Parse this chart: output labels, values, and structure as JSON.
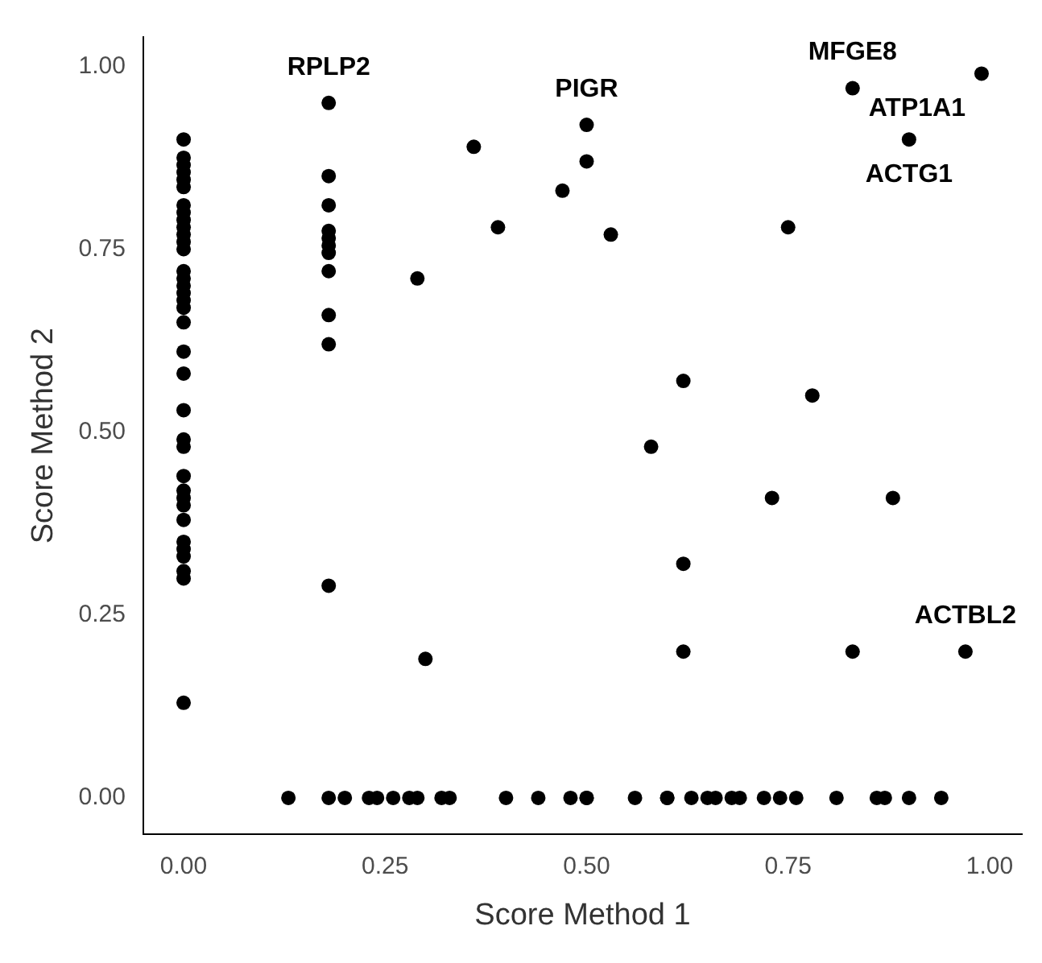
{
  "chart_data": {
    "type": "scatter",
    "xlabel": "Score Method 1",
    "ylabel": "Score Method 2",
    "xlim": [
      -0.05,
      1.04
    ],
    "ylim": [
      -0.05,
      1.04
    ],
    "xticks": [
      {
        "value": 0,
        "label": "0.00"
      },
      {
        "value": 0.25,
        "label": "0.25"
      },
      {
        "value": 0.5,
        "label": "0.50"
      },
      {
        "value": 0.75,
        "label": "0.75"
      },
      {
        "value": 1,
        "label": "1.00"
      }
    ],
    "yticks": [
      {
        "value": 0,
        "label": "0.00"
      },
      {
        "value": 0.25,
        "label": "0.25"
      },
      {
        "value": 0.5,
        "label": "0.50"
      },
      {
        "value": 0.75,
        "label": "0.75"
      },
      {
        "value": 1,
        "label": "1.00"
      }
    ],
    "grid": false,
    "legend": false,
    "marker": "circle",
    "series": [
      {
        "color": "#000000",
        "x": [
          0,
          0,
          0,
          0,
          0,
          0,
          0,
          0,
          0,
          0,
          0,
          0,
          0,
          0,
          0,
          0,
          0,
          0,
          0,
          0,
          0,
          0,
          0,
          0,
          0,
          0,
          0,
          0,
          0,
          0,
          0,
          0,
          0,
          0,
          0,
          0
        ],
        "values": [
          0.9,
          0.875,
          0.865,
          0.855,
          0.845,
          0.835,
          0.81,
          0.8,
          0.79,
          0.78,
          0.77,
          0.76,
          0.75,
          0.72,
          0.71,
          0.7,
          0.69,
          0.68,
          0.67,
          0.65,
          0.61,
          0.58,
          0.53,
          0.49,
          0.48,
          0.44,
          0.42,
          0.41,
          0.4,
          0.38,
          0.35,
          0.34,
          0.33,
          0.31,
          0.3,
          0.13
        ]
      },
      {
        "color": "#000000",
        "x": [
          0.18,
          0.18,
          0.18,
          0.18,
          0.18,
          0.18,
          0.18,
          0.18,
          0.18,
          0.18,
          0.18
        ],
        "values": [
          0.95,
          0.85,
          0.81,
          0.775,
          0.765,
          0.755,
          0.745,
          0.72,
          0.66,
          0.62,
          0.29
        ]
      },
      {
        "color": "#000000",
        "x": [
          0.36,
          0.29,
          0.39,
          0.47,
          0.5,
          0.5,
          0.53,
          0.75,
          0.83,
          0.99,
          0.9,
          0.62,
          0.78,
          0.58,
          0.73,
          0.88,
          0.62,
          0.62,
          0.83,
          0.97,
          0.3
        ],
        "values": [
          0.89,
          0.71,
          0.78,
          0.83,
          0.92,
          0.87,
          0.77,
          0.78,
          0.97,
          0.99,
          0.9,
          0.57,
          0.55,
          0.48,
          0.41,
          0.41,
          0.32,
          0.2,
          0.2,
          0.2,
          0.19
        ]
      },
      {
        "color": "#000000",
        "x": [
          0.13,
          0.18,
          0.2,
          0.23,
          0.24,
          0.26,
          0.28,
          0.29,
          0.32,
          0.33,
          0.4,
          0.44,
          0.48,
          0.5,
          0.5,
          0.56,
          0.6,
          0.6,
          0.63,
          0.65,
          0.66,
          0.68,
          0.69,
          0.72,
          0.74,
          0.76,
          0.81,
          0.86,
          0.87,
          0.9,
          0.94
        ],
        "values": [
          0,
          0,
          0,
          0,
          0,
          0,
          0,
          0,
          0,
          0,
          0,
          0,
          0,
          0,
          0,
          0,
          0,
          0,
          0,
          0,
          0,
          0,
          0,
          0,
          0,
          0,
          0,
          0,
          0,
          0,
          0
        ]
      }
    ],
    "annotations": [
      {
        "text": "RPLP2",
        "x": 0.18,
        "y": 0.95
      },
      {
        "text": "PIGR",
        "x": 0.5,
        "y": 0.92
      },
      {
        "text": "MFGE8",
        "x": 0.83,
        "y": 0.97
      },
      {
        "text": "ATP1A1",
        "x": 0.99,
        "y": 0.99
      },
      {
        "text": "ACTG1",
        "x": 0.9,
        "y": 0.9
      },
      {
        "text": "ACTBL2",
        "x": 0.97,
        "y": 0.2
      }
    ]
  }
}
